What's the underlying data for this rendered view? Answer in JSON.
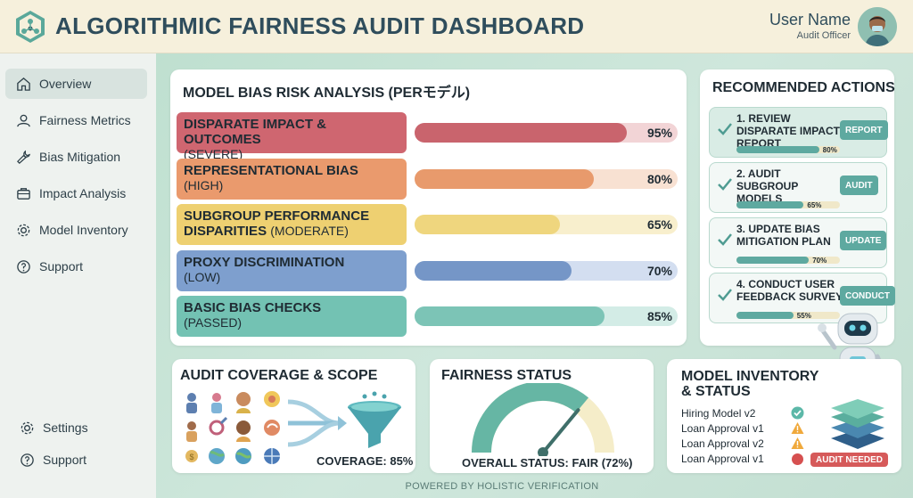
{
  "header": {
    "title": "ALGORITHMIC FAIRNESS AUDIT DASHBOARD",
    "user_name": "User Name",
    "user_role": "Audit Officer"
  },
  "sidebar": {
    "items": [
      {
        "label": "Overview",
        "icon": "home-icon",
        "active": true
      },
      {
        "label": "Fairness Metrics",
        "icon": "user-icon"
      },
      {
        "label": "Bias Mitigation",
        "icon": "wrench-icon"
      },
      {
        "label": "Impact Analysis",
        "icon": "briefcase-icon"
      },
      {
        "label": "Model Inventory",
        "icon": "gear-icon"
      },
      {
        "label": "Support",
        "icon": "help-icon"
      }
    ],
    "bottom": [
      {
        "label": "Settings",
        "icon": "gear-icon"
      },
      {
        "label": "Support",
        "icon": "help-icon"
      }
    ]
  },
  "risk": {
    "title": "MODEL BIAS RISK ANALYSIS (PERモデル)",
    "rows": [
      {
        "label": "DISPARATE IMPACT & OUTCOMES",
        "severity": "(SEVERE)",
        "pct_label": "95%",
        "value": 95,
        "label_color": "#cf6670",
        "fill_color": "#c9646d",
        "track_color": "#f2d4d6"
      },
      {
        "label": "REPRESENTATIONAL BIAS",
        "severity": "(HIGH)",
        "pct_label": "80%",
        "value": 80,
        "label_color": "#ea9a6d",
        "fill_color": "#e89a6c",
        "track_color": "#f8e1d2"
      },
      {
        "label": "SUBGROUP PERFORMANCE DISPARITIES",
        "severity": "(MODERATE)",
        "pct_label": "65%",
        "value": 65,
        "label_color": "#eed071",
        "fill_color": "#efd67e",
        "track_color": "#f8efcd"
      },
      {
        "label": "PROXY DISCRIMINATION",
        "severity": "(LOW)",
        "pct_label": "70%",
        "value": 70,
        "label_color": "#7e9fce",
        "fill_color": "#7596c7",
        "track_color": "#d3def0"
      },
      {
        "label": "BASIC BIAS CHECKS",
        "severity": "(PASSED)",
        "pct_label": "85%",
        "value": 85,
        "label_color": "#73c2b3",
        "fill_color": "#7cc4b6",
        "track_color": "#d3ece6"
      }
    ]
  },
  "actions": {
    "title": "RECOMMENDED ACTIONS",
    "items": [
      {
        "text": "1. REVIEW DISPARATE IMPACT REPORT",
        "button": "REPORT",
        "pct_label": "80%",
        "value": 80
      },
      {
        "text": "2. AUDIT SUBGROUP MODELS",
        "button": "AUDIT",
        "pct_label": "65%",
        "value": 65
      },
      {
        "text": "3. UPDATE BIAS MITIGATION PLAN",
        "button": "UPDATE",
        "pct_label": "70%",
        "value": 70
      },
      {
        "text": "4. CONDUCT USER FEEDBACK SURVEY",
        "button": "CONDUCT",
        "pct_label": "55%",
        "value": 55
      }
    ]
  },
  "robot": {
    "badge": "AI"
  },
  "coverage": {
    "title": "AUDIT COVERAGE & SCOPE",
    "value_label": "COVERAGE: 85%"
  },
  "fairness": {
    "title": "FAIRNESS STATUS",
    "status_label": "OVERALL STATUS: FAIR (72%)",
    "value": 72
  },
  "inventory": {
    "title_line1": "MODEL INVENTORY",
    "title_line2": "& STATUS",
    "items": [
      {
        "name": "Hiring Model v2",
        "status": "ok"
      },
      {
        "name": "Loan Approval v1",
        "status": "warning"
      },
      {
        "name": "Loan Approval v2",
        "status": "warning"
      },
      {
        "name": "Loan Approval v1",
        "status": "alert"
      }
    ],
    "badge": "AUDIT NEEDED"
  },
  "footer": "POWERED BY HOLISTIC VERIFICATION"
}
